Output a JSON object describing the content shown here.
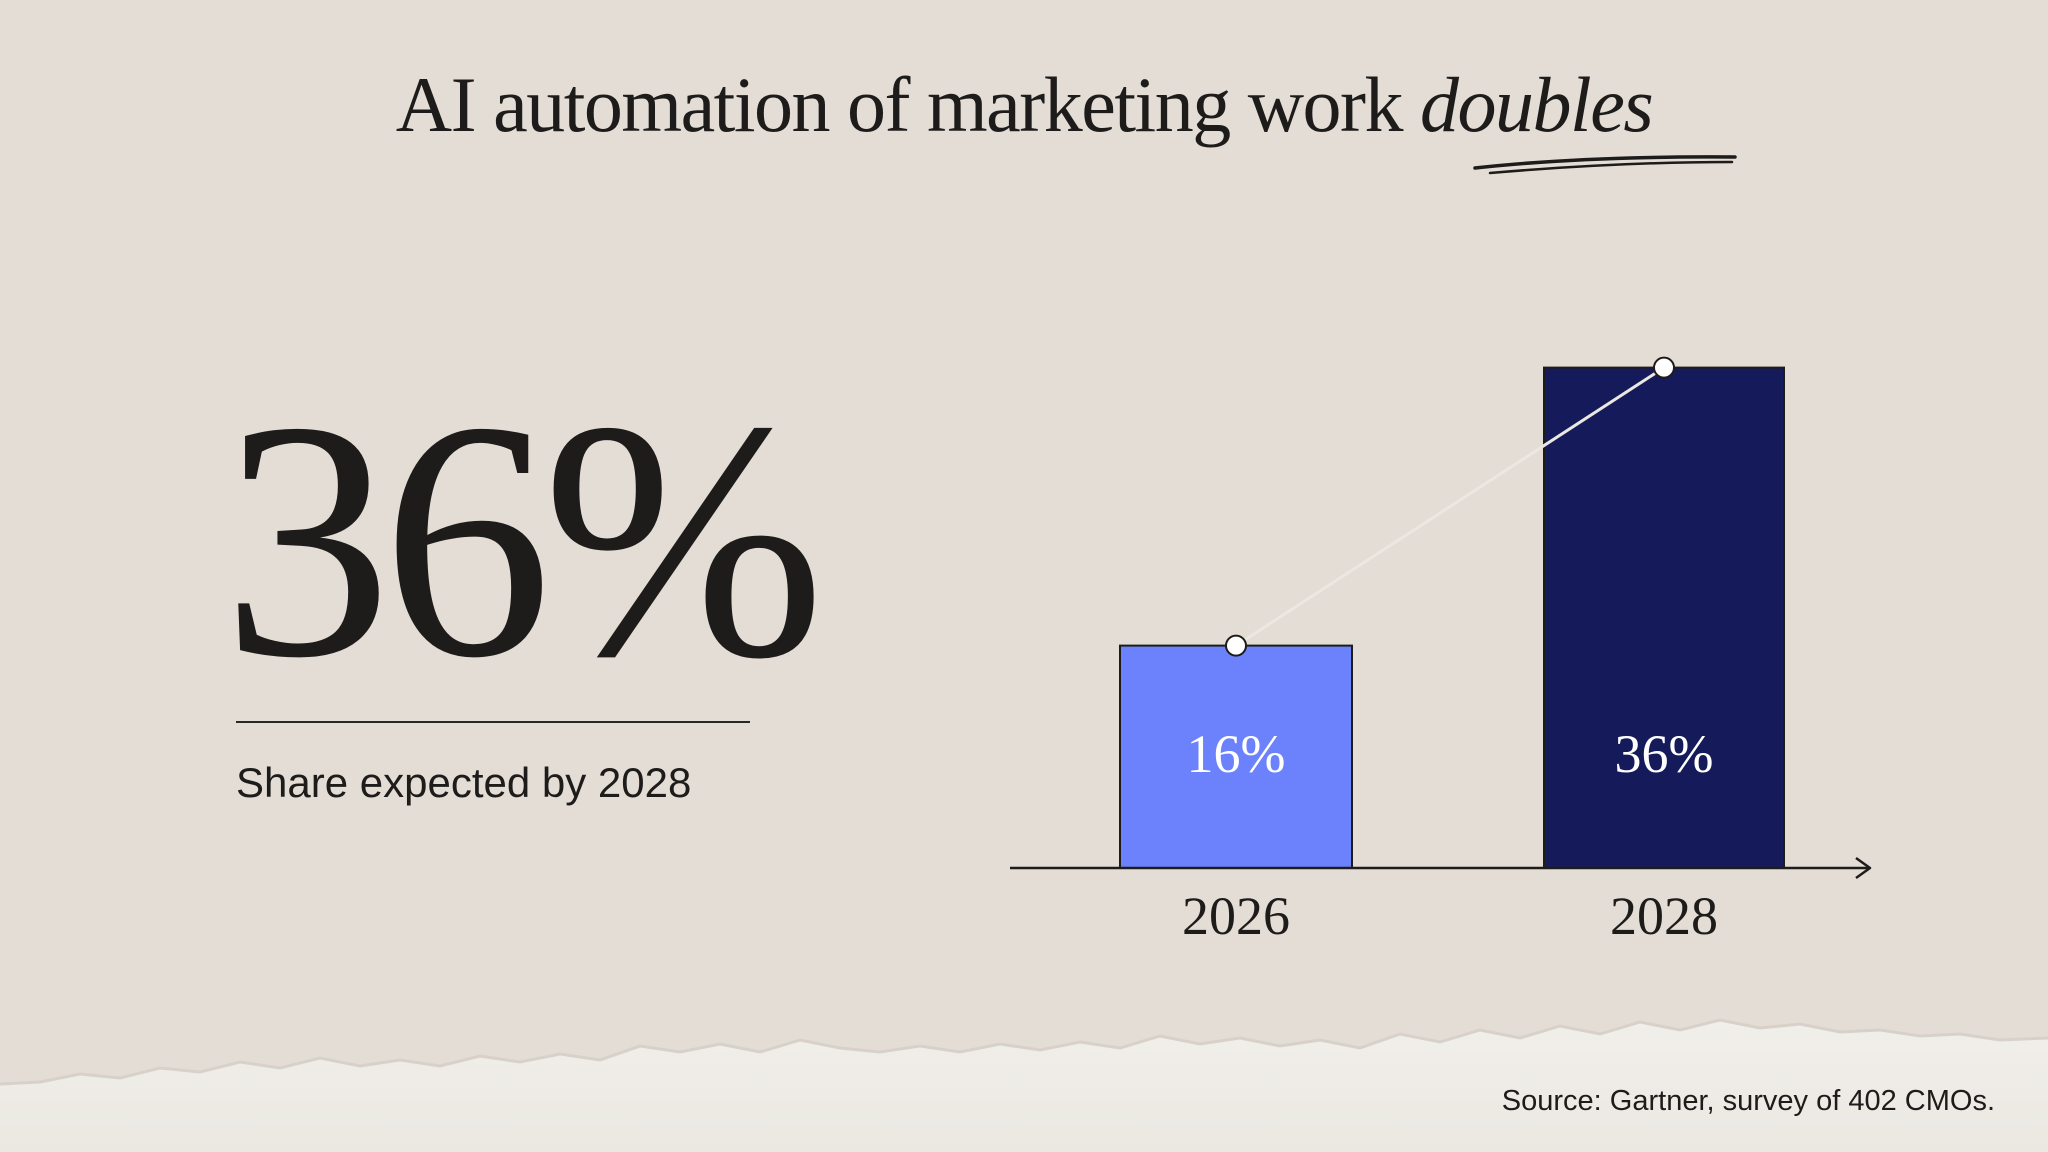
{
  "title": {
    "main": "AI automation of marketing work",
    "emphasis": "doubles"
  },
  "stat": {
    "value": "36%",
    "caption": "Share expected by 2028"
  },
  "source": "Source: Gartner, survey of 402 CMOs.",
  "colors": {
    "background": "#e3ddd6",
    "text": "#1e1c1a",
    "bar_2026": "#6b82fc",
    "bar_2028": "#151a5a",
    "trend_line": "#ebe7e1"
  },
  "chart_data": {
    "type": "bar",
    "categories": [
      "2026",
      "2028"
    ],
    "values": [
      16,
      36
    ],
    "data_labels": [
      "16%",
      "36%"
    ],
    "ylim": [
      0,
      40
    ],
    "trend_line": true,
    "grid": false,
    "legend": "none"
  }
}
